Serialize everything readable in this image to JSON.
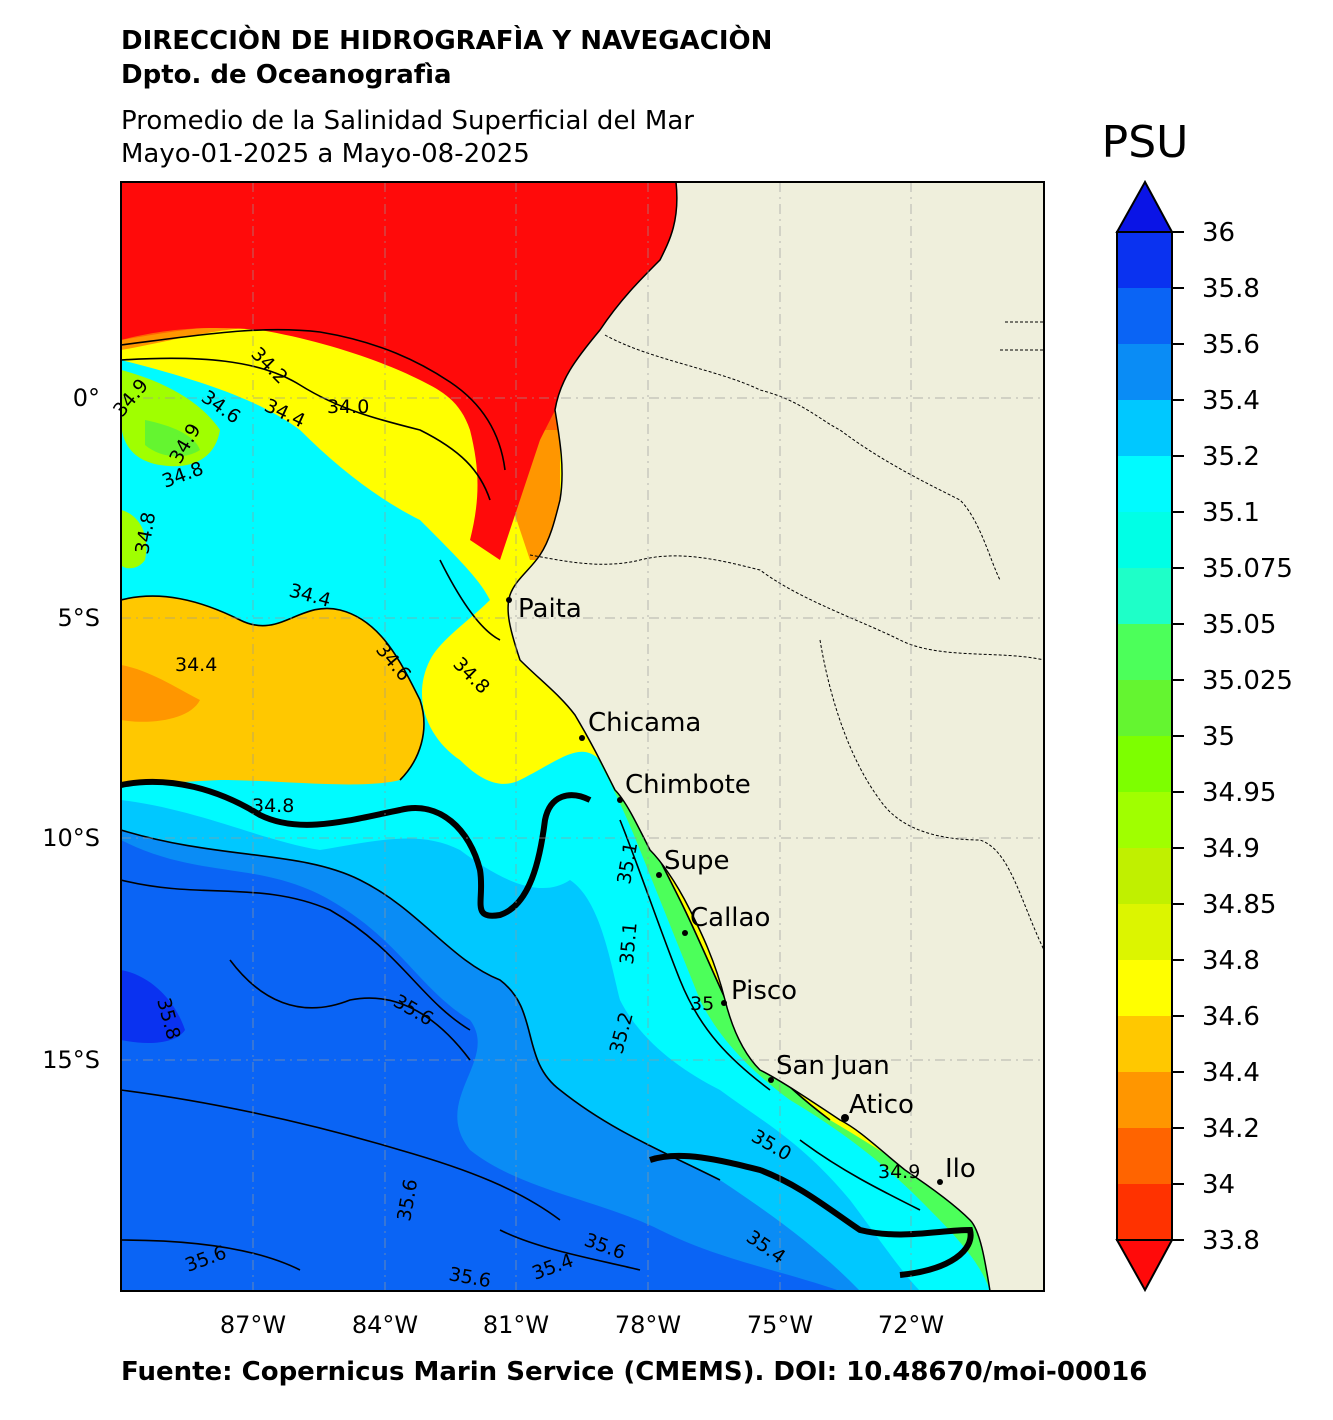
{
  "header": {
    "org": "DIRECCIÒN DE HIDROGRAFÌA Y NAVEGACIÒN",
    "dept": "Dpto. de Oceanografìa",
    "title": "Promedio de la Salinidad Superficial del Mar",
    "dates": "Mayo-01-2025 a Mayo-08-2025"
  },
  "footer": {
    "source": "Fuente: Copernicus Marin Service (CMEMS). DOI: 10.48670/moi-00016"
  },
  "map": {
    "lon_ticks": [
      "87°W",
      "84°W",
      "81°W",
      "78°W",
      "75°W",
      "72°W"
    ],
    "lat_ticks": [
      "0°",
      "5°S",
      "10°S",
      "15°S"
    ],
    "land_color": "#efefdc",
    "cities": [
      {
        "name": "Paita"
      },
      {
        "name": "Chicama"
      },
      {
        "name": "Chimbote"
      },
      {
        "name": "Supe"
      },
      {
        "name": "Callao"
      },
      {
        "name": "Pisco"
      },
      {
        "name": "San Juan"
      },
      {
        "name": "Atico"
      },
      {
        "name": "Ilo"
      }
    ],
    "contour_labels": [
      "34.2",
      "34.0",
      "34.9",
      "34.6",
      "34.4",
      "34.9",
      "34.8",
      "34.8",
      "34.4",
      "34.4",
      "34.6",
      "34.8",
      "34.8",
      "35.1",
      "35.1",
      "35.2",
      "35.6",
      "35.8",
      "35.6",
      "35.6",
      "35.6",
      "35.4",
      "35.6",
      "35.4",
      "34.9",
      "35.0",
      "35"
    ]
  },
  "colorbar": {
    "label": "PSU",
    "ticks": [
      "36",
      "35.8",
      "35.6",
      "35.4",
      "35.2",
      "35.1",
      "35.075",
      "35.05",
      "35.025",
      "35",
      "34.95",
      "34.9",
      "34.85",
      "34.8",
      "34.6",
      "34.4",
      "34.2",
      "34",
      "33.8"
    ],
    "over_color": "#0a14e6",
    "under_color": "#ff0a0a",
    "colors_top_to_bottom": [
      "#0a32f0",
      "#0a64f5",
      "#0a8cf5",
      "#00c8ff",
      "#00fbff",
      "#00ffe6",
      "#1effc8",
      "#4cff5a",
      "#64f530",
      "#7dff00",
      "#a0ff00",
      "#c0f000",
      "#dcf500",
      "#ffff00",
      "#ffc800",
      "#ff9600",
      "#ff6400",
      "#ff3200"
    ]
  }
}
